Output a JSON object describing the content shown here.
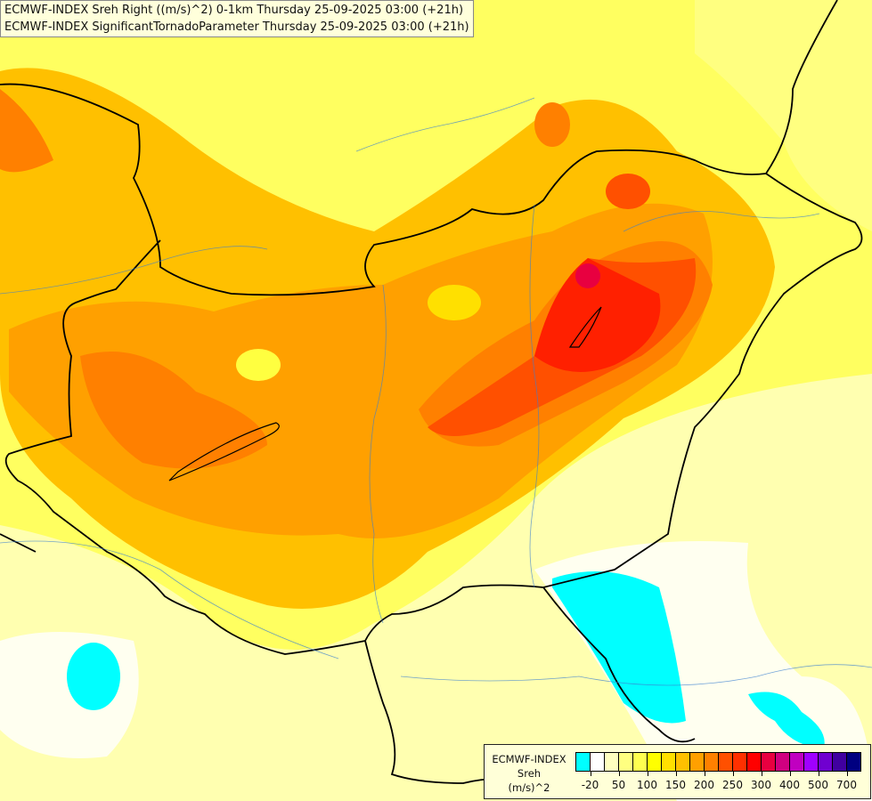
{
  "header": {
    "line1": "ECMWF-INDEX Sreh Right ((m/s)^2) 0-1km Thursday 25-09-2025 03:00 (+21h)",
    "line2": "ECMWF-INDEX SignificantTornadoParameter Thursday 25-09-2025 03:00 (+21h)"
  },
  "legend": {
    "title1": "ECMWF-INDEX",
    "title2": "Sreh",
    "title3": "(m/s)^2",
    "colors": [
      "#00ffff",
      "#ffffff",
      "#ffffc0",
      "#ffff80",
      "#ffff50",
      "#ffff00",
      "#ffe000",
      "#ffc000",
      "#ffa000",
      "#ff8000",
      "#ff5000",
      "#ff3000",
      "#ff0000",
      "#e80040",
      "#d00080",
      "#c000c0",
      "#a000ff",
      "#7000d0",
      "#4000a0",
      "#000080"
    ],
    "ticks": [
      {
        "label": "-20",
        "after": 1
      },
      {
        "label": "50",
        "after": 3
      },
      {
        "label": "100",
        "after": 5
      },
      {
        "label": "150",
        "after": 7
      },
      {
        "label": "200",
        "after": 9
      },
      {
        "label": "250",
        "after": 11
      },
      {
        "label": "300",
        "after": 13
      },
      {
        "label": "400",
        "after": 15
      },
      {
        "label": "500",
        "after": 17
      },
      {
        "label": "700",
        "after": 19
      }
    ]
  }
}
